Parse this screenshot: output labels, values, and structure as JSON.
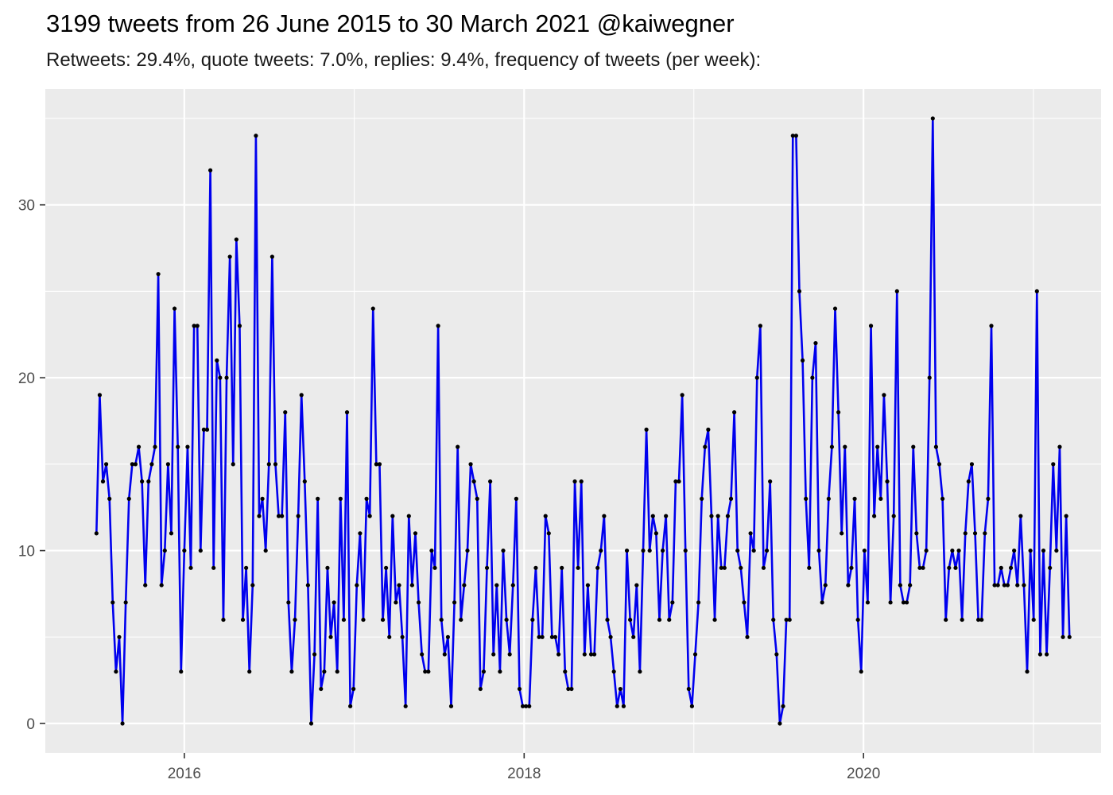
{
  "header": {
    "title": "3199 tweets from 26 June 2015 to 30 March 2021 @kaiwegner",
    "subtitle": "Retweets: 29.4%, quote tweets: 7.0%, replies: 9.4%, frequency of tweets (per week):"
  },
  "chart_data": {
    "type": "line",
    "title": "3199 tweets from 26 June 2015 to 30 March 2021 @kaiwegner",
    "subtitle": "Retweets: 29.4%, quote tweets: 7.0%, replies: 9.4%, frequency of tweets (per week):",
    "xlabel": "",
    "ylabel": "",
    "x_start": "2015-06-26",
    "x_step": "1 week",
    "xlim": [
      "2015-03-08",
      "2021-05-26"
    ],
    "ylim": [
      -1.7,
      36.7
    ],
    "x_ticks": [
      {
        "date": "2016-01-01",
        "label": "2016"
      },
      {
        "date": "2018-01-01",
        "label": "2018"
      },
      {
        "date": "2020-01-01",
        "label": "2020"
      }
    ],
    "y_ticks": [
      0,
      10,
      20,
      30
    ],
    "grid": true,
    "legend": "none",
    "colors": {
      "line": "#0000ee",
      "point": "#000000",
      "panel": "#ebebeb",
      "grid": "#ffffff"
    },
    "values": [
      11,
      19,
      14,
      15,
      13,
      7,
      3,
      5,
      0,
      7,
      13,
      15,
      15,
      16,
      14,
      8,
      14,
      15,
      16,
      26,
      8,
      10,
      15,
      11,
      24,
      16,
      3,
      10,
      16,
      9,
      23,
      23,
      10,
      17,
      17,
      32,
      9,
      21,
      20,
      6,
      20,
      27,
      15,
      28,
      23,
      6,
      9,
      3,
      8,
      34,
      12,
      13,
      10,
      15,
      27,
      15,
      12,
      12,
      18,
      7,
      3,
      6,
      12,
      19,
      14,
      8,
      0,
      4,
      13,
      2,
      3,
      9,
      5,
      7,
      3,
      13,
      6,
      18,
      1,
      2,
      8,
      11,
      6,
      13,
      12,
      24,
      15,
      15,
      6,
      9,
      5,
      12,
      7,
      8,
      5,
      1,
      12,
      8,
      11,
      7,
      4,
      3,
      3,
      10,
      9,
      23,
      6,
      4,
      5,
      1,
      7,
      16,
      6,
      8,
      10,
      15,
      14,
      13,
      2,
      3,
      9,
      14,
      4,
      8,
      3,
      10,
      6,
      4,
      8,
      13,
      2,
      1,
      1,
      1,
      6,
      9,
      5,
      5,
      12,
      11,
      5,
      5,
      4,
      9,
      3,
      2,
      2,
      14,
      9,
      14,
      4,
      8,
      4,
      4,
      9,
      10,
      12,
      6,
      5,
      3,
      1,
      2,
      1,
      10,
      6,
      5,
      8,
      3,
      10,
      17,
      10,
      12,
      11,
      6,
      10,
      12,
      6,
      7,
      14,
      14,
      19,
      10,
      2,
      1,
      4,
      7,
      13,
      16,
      17,
      12,
      6,
      12,
      9,
      9,
      12,
      13,
      18,
      10,
      9,
      7,
      5,
      11,
      10,
      20,
      23,
      9,
      10,
      14,
      6,
      4,
      0,
      1,
      6,
      6,
      34,
      34,
      25,
      21,
      13,
      9,
      20,
      22,
      10,
      7,
      8,
      13,
      16,
      24,
      18,
      11,
      16,
      8,
      9,
      13,
      6,
      3,
      10,
      7,
      23,
      12,
      16,
      13,
      19,
      14,
      7,
      12,
      25,
      8,
      7,
      7,
      8,
      16,
      11,
      9,
      9,
      10,
      20,
      35,
      16,
      15,
      13,
      6,
      9,
      10,
      9,
      10,
      6,
      11,
      14,
      15,
      11,
      6,
      6,
      11,
      13,
      23,
      8,
      8,
      9,
      8,
      8,
      9,
      10,
      8,
      12,
      8,
      3,
      10,
      6,
      25,
      4,
      10,
      4,
      9,
      15,
      10,
      16,
      5,
      12,
      5
    ]
  }
}
